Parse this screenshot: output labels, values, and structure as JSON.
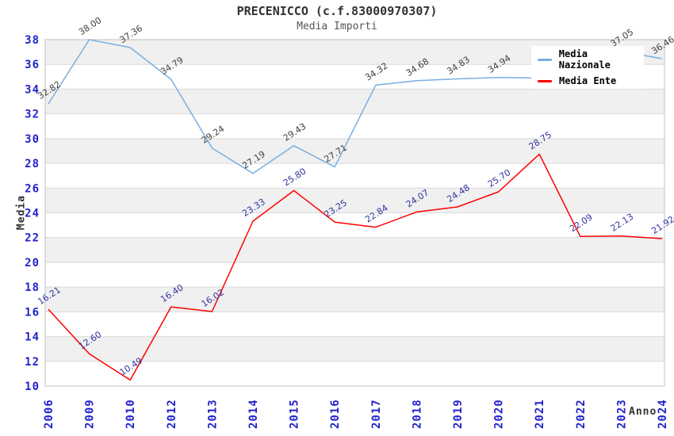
{
  "title": "PRECENICCO (c.f.83000970307)",
  "subtitle": "Media Importi",
  "colors": {
    "band": "#f0f0f0",
    "grid": "#d9d9d9",
    "border": "#c0c0c0",
    "tick_label": "#2222CC",
    "title": "#333333",
    "subtitle": "#555555",
    "nazionale_line": "#78AFE1",
    "ente_line": "#FF0000",
    "nazionale_label": "#404040",
    "ente_label": "#3333A0"
  },
  "chart_data": {
    "type": "line",
    "title": "PRECENICCO (c.f.83000970307)",
    "subtitle": "Media Importi",
    "xlabel": "Anno",
    "ylabel": "Media",
    "ylim": [
      10,
      38
    ],
    "ytick_step": 2,
    "grid": "horizontal-gridlines-with-alternating-bands",
    "legend_position": "top-right",
    "x": [
      "2006",
      "2009",
      "2010",
      "2012",
      "2013",
      "2014",
      "2015",
      "2016",
      "2017",
      "2018",
      "2019",
      "2020",
      "2021",
      "2022",
      "2023",
      "2024"
    ],
    "series": [
      {
        "name": "Media Nazionale",
        "color": "#78AFE1",
        "label_color": "#404040",
        "values": [
          32.82,
          38.0,
          37.36,
          34.79,
          29.24,
          27.19,
          29.43,
          27.71,
          34.32,
          34.68,
          34.83,
          34.94,
          34.9,
          36.2,
          37.05,
          36.46
        ],
        "labels": [
          "32.82",
          "38.00",
          "37.36",
          "34.79",
          "29.24",
          "27.19",
          "29.43",
          "27.71",
          "34.32",
          "34.68",
          "34.83",
          "34.94",
          null,
          null,
          "37.05",
          "36.46"
        ]
      },
      {
        "name": "Media Ente",
        "color": "#FF0000",
        "label_color": "#3333A0",
        "values": [
          16.21,
          12.6,
          10.49,
          16.4,
          16.02,
          23.33,
          25.8,
          23.25,
          22.84,
          24.07,
          24.48,
          25.7,
          28.75,
          22.09,
          22.13,
          21.92
        ],
        "labels": [
          "16.21",
          "12.60",
          "10.49",
          "16.40",
          "16.02",
          "23.33",
          "25.80",
          "23.25",
          "22.84",
          "24.07",
          "24.48",
          "25.70",
          "28.75",
          "22.09",
          "22.13",
          "21.92"
        ]
      }
    ]
  }
}
